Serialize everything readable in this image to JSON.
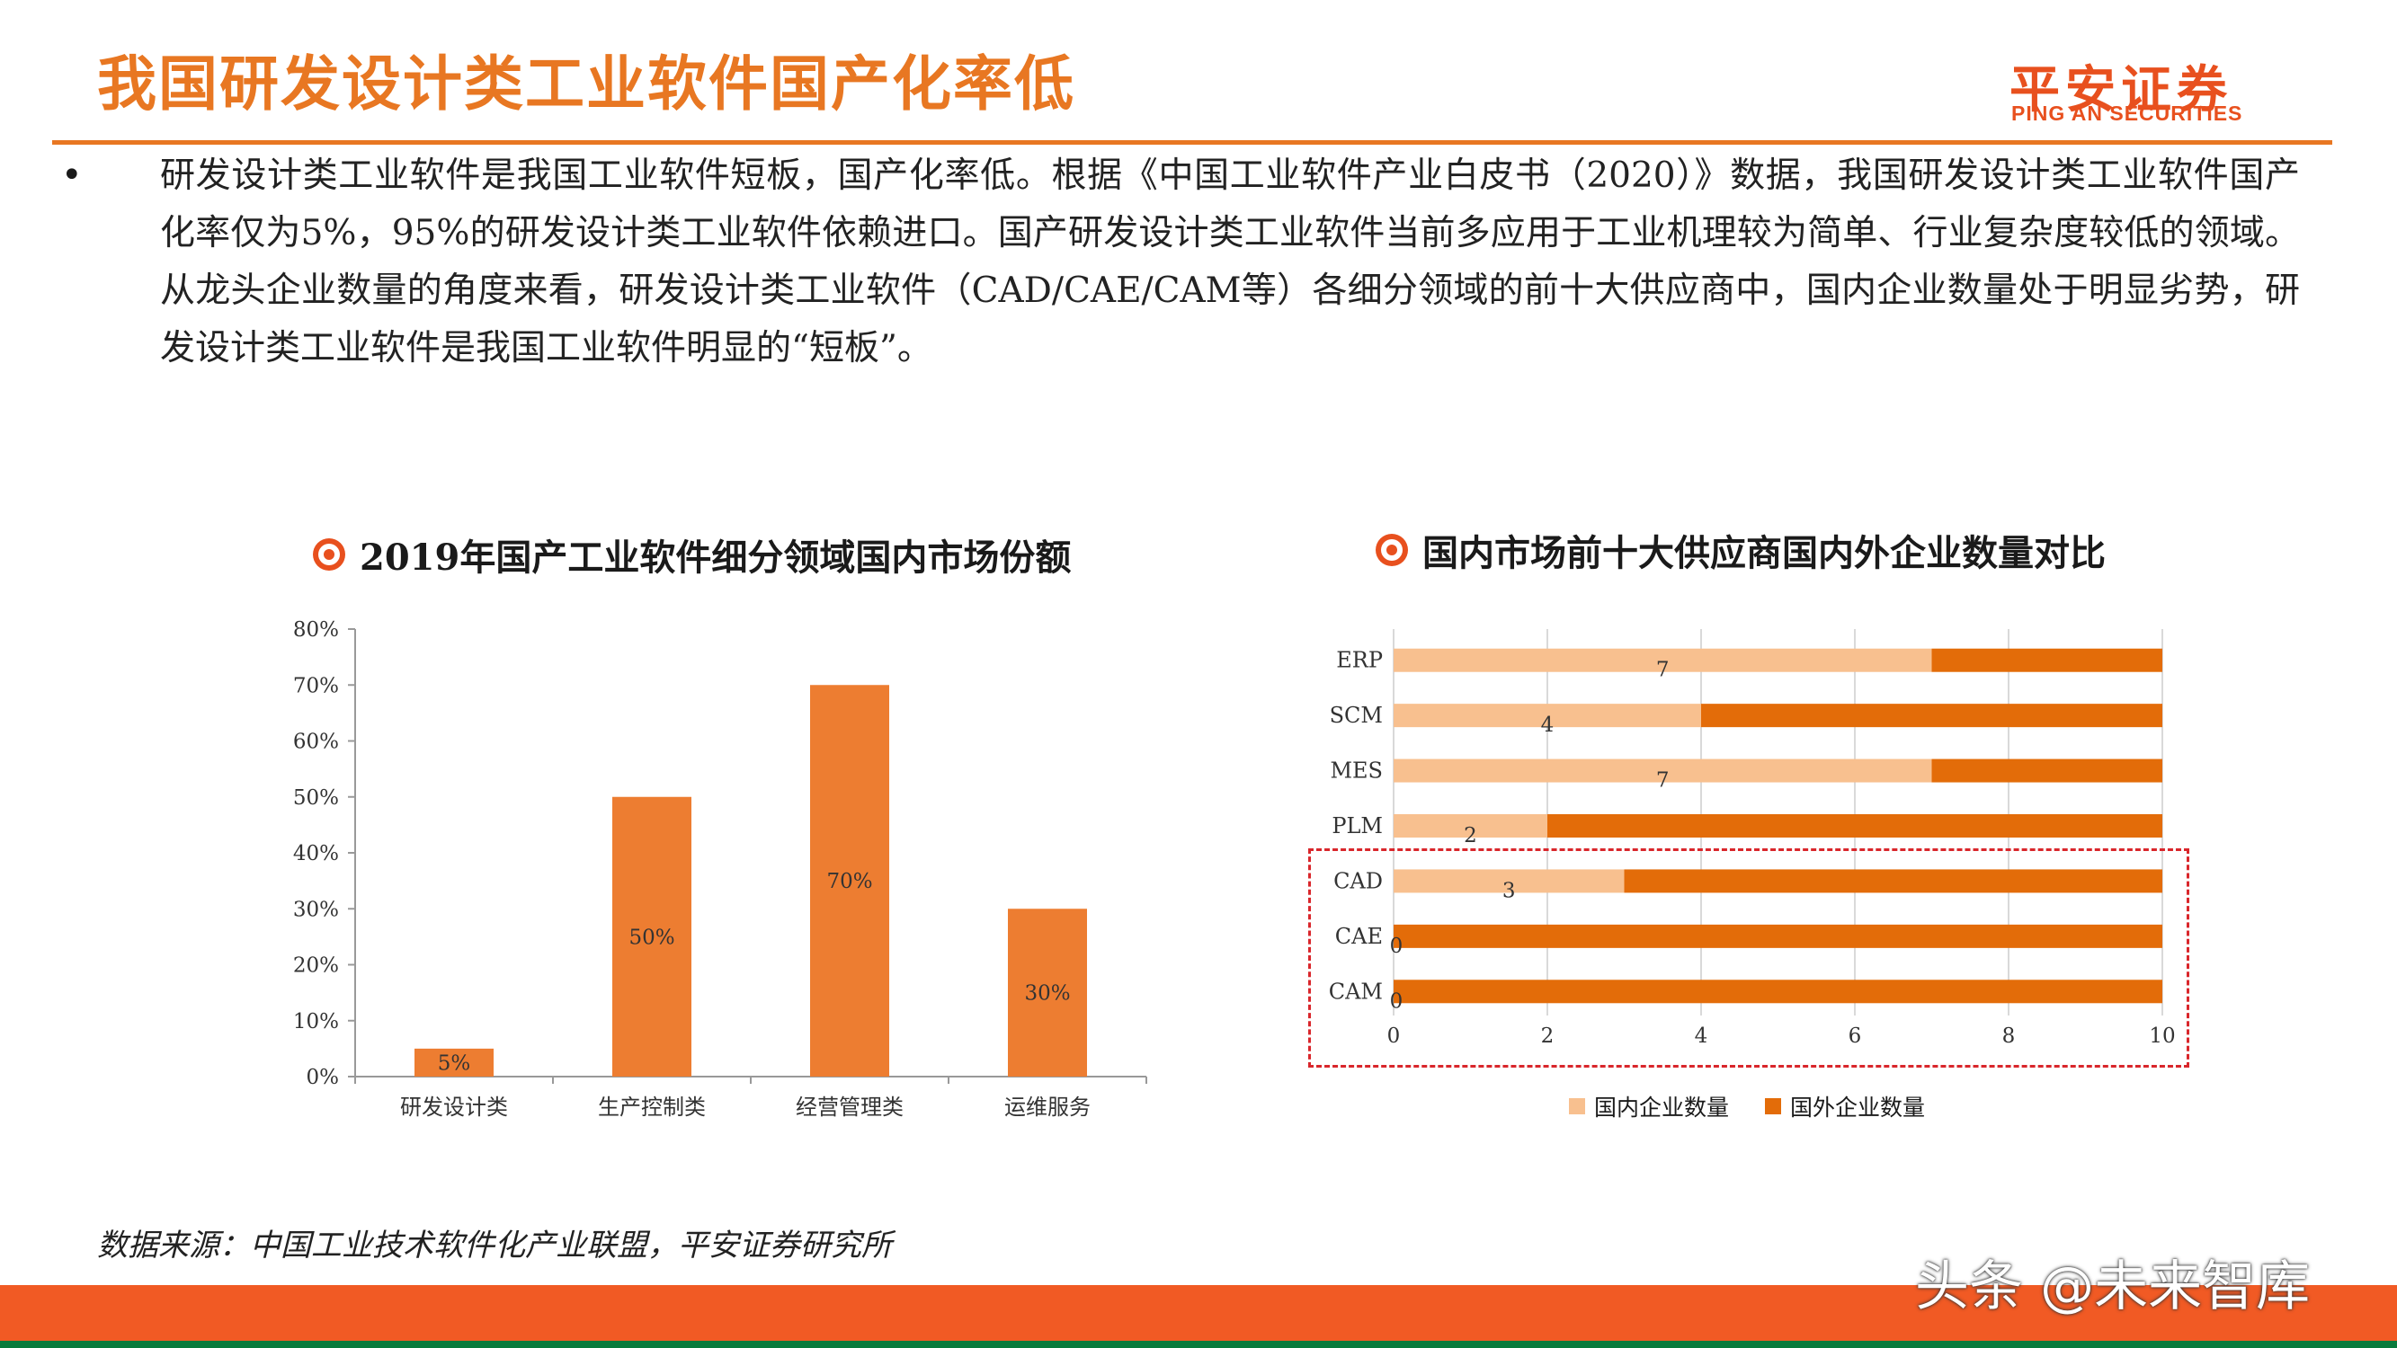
{
  "header": {
    "title": "我国研发设计类工业软件国产化率低",
    "logo_main": "平安证券",
    "logo_sub": "PING AN SECURITIES"
  },
  "body": {
    "bullet": "•",
    "paragraph": "研发设计类工业软件是我国工业软件短板，国产化率低。根据《中国工业软件产业白皮书（2020）》数据，我国研发设计类工业软件国产化率仅为5%，95%的研发设计类工业软件依赖进口。国产研发设计类工业软件当前多应用于工业机理较为简单、行业复杂度较低的领域。从龙头企业数量的角度来看，研发设计类工业软件（CAD/CAE/CAM等）各细分领域的前十大供应商中，国内企业数量处于明显劣势，研发设计类工业软件是我国工业软件明显的“短板”。"
  },
  "chart_data": [
    {
      "type": "bar",
      "title": "2019年国产工业软件细分领域国内市场份额",
      "categories": [
        "研发设计类",
        "生产控制类",
        "经营管理类",
        "运维服务"
      ],
      "values": [
        5,
        50,
        70,
        30
      ],
      "value_labels": [
        "5%",
        "50%",
        "70%",
        "30%"
      ],
      "ylim": [
        0,
        80
      ],
      "yticks": [
        "0%",
        "10%",
        "20%",
        "30%",
        "40%",
        "50%",
        "60%",
        "70%",
        "80%"
      ],
      "color": "#ed7d31"
    },
    {
      "type": "bar",
      "orientation": "horizontal",
      "stacked": true,
      "title": "国内市场前十大供应商国内外企业数量对比",
      "categories": [
        "ERP",
        "SCM",
        "MES",
        "PLM",
        "CAD",
        "CAE",
        "CAM"
      ],
      "series": [
        {
          "name": "国内企业数量",
          "values": [
            7,
            4,
            7,
            2,
            3,
            0,
            0
          ],
          "color": "#f8c08f"
        },
        {
          "name": "国外企业数量",
          "values": [
            3,
            6,
            3,
            8,
            7,
            10,
            10
          ],
          "color": "#e36c09"
        }
      ],
      "xlim": [
        0,
        10
      ],
      "xticks": [
        "0",
        "2",
        "4",
        "6",
        "8",
        "10"
      ],
      "grid": true,
      "legend": "bottom"
    }
  ],
  "source": "数据来源：中国工业技术软件化产业联盟，平安证券研究所",
  "watermark": "头条 @未来智库"
}
